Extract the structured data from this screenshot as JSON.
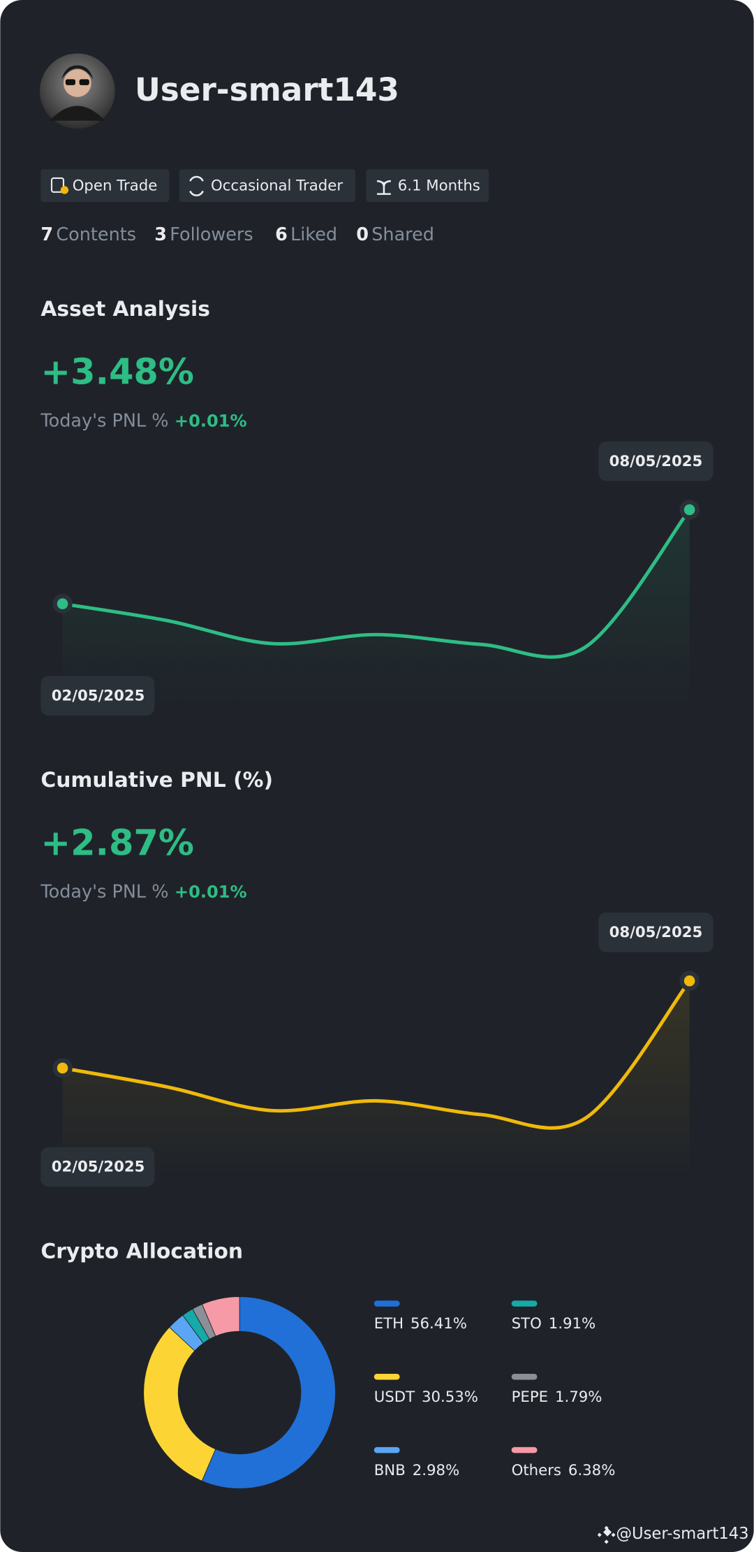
{
  "profile": {
    "username": "User-smart143",
    "tags": [
      "Open Trade",
      "Occasional Trader",
      "6.1 Months"
    ],
    "stats": [
      {
        "value": 7,
        "label": "Contents"
      },
      {
        "value": 3,
        "label": "Followers"
      },
      {
        "value": 6,
        "label": "Liked"
      },
      {
        "value": 0,
        "label": "Shared"
      }
    ]
  },
  "chart_data": [
    {
      "type": "line",
      "title": "Asset Analysis",
      "headline": "+3.48%",
      "pnl_label": "Today's PNL %",
      "pnl_value": "+0.01%",
      "x": [
        "02/05/2025",
        null,
        null,
        null,
        null,
        null,
        "08/05/2025"
      ],
      "values": [
        0,
        -0.62,
        -1.47,
        -1.14,
        -1.5,
        -1.61,
        3.48
      ],
      "color": "#2ebd85"
    },
    {
      "type": "line",
      "title": "Cumulative PNL (%)",
      "headline": "+2.87%",
      "pnl_label": "Today's PNL %",
      "pnl_value": "+0.01%",
      "x": [
        "02/05/2025",
        null,
        null,
        null,
        null,
        null,
        "08/05/2025"
      ],
      "values": [
        0,
        -0.62,
        -1.4,
        -1.08,
        -1.53,
        -1.66,
        2.87
      ],
      "color": "#f0b90b"
    },
    {
      "type": "donut",
      "title": "Crypto Allocation",
      "categories": [
        "ETH",
        "USDT",
        "BNB",
        "STO",
        "PEPE",
        "Others"
      ],
      "values": [
        56.41,
        30.53,
        2.98,
        1.91,
        1.79,
        6.38
      ],
      "value_labels": [
        "56.41%",
        "30.53%",
        "2.98%",
        "1.91%",
        "1.79%",
        "6.38%"
      ],
      "colors": [
        "#2170d8",
        "#fcd535",
        "#5aa6f5",
        "#16aaa8",
        "#8b8f96",
        "#f59aa6"
      ]
    }
  ],
  "watermark": "@User-smart143"
}
